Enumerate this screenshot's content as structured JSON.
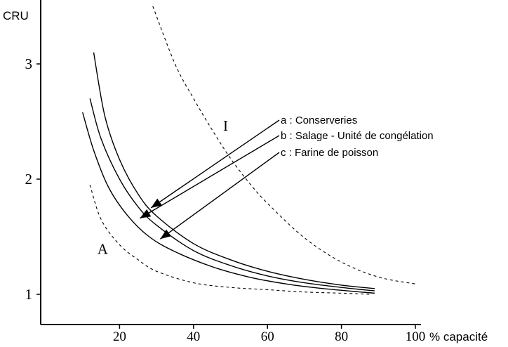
{
  "chart_data": {
    "type": "line",
    "ylabel": "CRU",
    "xlabel": "% capacité",
    "xlim": [
      0,
      100
    ],
    "ylim": [
      0.8,
      3.5
    ],
    "x_ticks": [
      {
        "value": 20,
        "label": "20"
      },
      {
        "value": 40,
        "label": "40"
      },
      {
        "value": 60,
        "label": "60"
      },
      {
        "value": 80,
        "label": "80"
      },
      {
        "value": 100,
        "label": "100"
      }
    ],
    "y_ticks": [
      {
        "value": 1,
        "label": "1"
      },
      {
        "value": 2,
        "label": "2"
      },
      {
        "value": 3,
        "label": "3"
      }
    ],
    "series": [
      {
        "name": "a : Conserveries",
        "style": "solid",
        "x": [
          13,
          16,
          20,
          25,
          30,
          40,
          50,
          60,
          70,
          80,
          89
        ],
        "y": [
          3.1,
          2.55,
          2.17,
          1.87,
          1.68,
          1.44,
          1.3,
          1.2,
          1.13,
          1.08,
          1.05
        ]
      },
      {
        "name": "b : Salage - Unité de congélation",
        "style": "solid",
        "x": [
          12,
          15,
          20,
          25,
          30,
          40,
          50,
          60,
          70,
          80,
          89
        ],
        "y": [
          2.7,
          2.35,
          2.0,
          1.76,
          1.6,
          1.38,
          1.25,
          1.16,
          1.1,
          1.06,
          1.03
        ]
      },
      {
        "name": "c : Farine de poisson",
        "style": "solid",
        "x": [
          10,
          13,
          17,
          22,
          28,
          35,
          45,
          55,
          65,
          75,
          89
        ],
        "y": [
          2.58,
          2.25,
          1.93,
          1.69,
          1.5,
          1.37,
          1.24,
          1.15,
          1.09,
          1.05,
          1.01
        ]
      },
      {
        "name": "I",
        "style": "dashed",
        "x": [
          29,
          35,
          40,
          45,
          50,
          55,
          60,
          70,
          80,
          90,
          100
        ],
        "y": [
          3.5,
          3.0,
          2.7,
          2.43,
          2.18,
          1.97,
          1.79,
          1.49,
          1.28,
          1.15,
          1.09
        ]
      },
      {
        "name": "A",
        "style": "dashed",
        "x": [
          12,
          15,
          20,
          25,
          30,
          40,
          50,
          60,
          70,
          80,
          88
        ],
        "y": [
          1.95,
          1.65,
          1.43,
          1.3,
          1.2,
          1.1,
          1.06,
          1.04,
          1.02,
          1.01,
          1.0
        ]
      }
    ],
    "region_labels": [
      {
        "text": "I",
        "x": 48,
        "y": 2.42
      },
      {
        "text": "A",
        "x": 14,
        "y": 1.35
      }
    ],
    "legend": {
      "placement": "top-right",
      "entries": [
        {
          "text": "a : Conserveries",
          "pointer": {
            "x": 28.5,
            "y": 1.75
          }
        },
        {
          "text": "b : Salage - Unité de congélation",
          "pointer": {
            "x": 25.5,
            "y": 1.66
          }
        },
        {
          "text": "c : Farine de poisson",
          "pointer": {
            "x": 31,
            "y": 1.48
          }
        }
      ]
    },
    "grid": false
  }
}
